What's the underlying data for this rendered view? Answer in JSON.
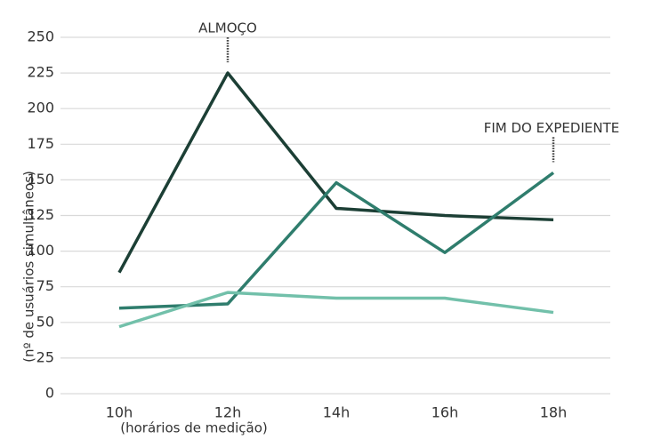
{
  "chart_data": {
    "type": "line",
    "x_label": "(horários de medição)",
    "y_label": "(nº de usuários simultâneos)",
    "categories": [
      "10h",
      "12h",
      "14h",
      "16h",
      "18h"
    ],
    "series": [
      {
        "color": "#1c3f35",
        "values": [
          85,
          225,
          130,
          125,
          122
        ]
      },
      {
        "color": "#2f7d6d",
        "values": [
          60,
          63,
          148,
          99,
          155
        ]
      },
      {
        "color": "#72c0aa",
        "values": [
          47,
          71,
          67,
          67,
          57
        ]
      }
    ],
    "annotations": [
      {
        "text": "ALMOÇO",
        "x": "12h"
      },
      {
        "text": "FIM DO EXPEDIENTE",
        "x": "18h"
      }
    ],
    "ylim": [
      0,
      250
    ],
    "yticks": [
      0,
      25,
      50,
      75,
      100,
      125,
      150,
      175,
      200,
      225,
      250
    ],
    "grid": true
  }
}
